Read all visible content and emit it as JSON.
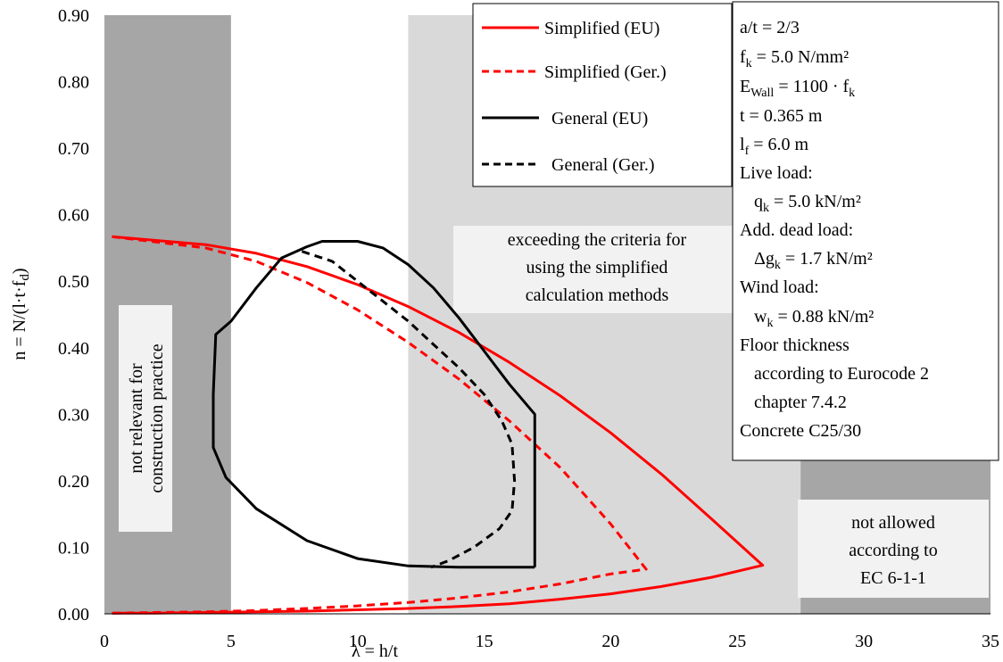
{
  "chart_data": {
    "type": "line",
    "xlabel": "λ = h/t",
    "ylabel": "n = N/(l·t·f_d)",
    "xlim": [
      0,
      35
    ],
    "ylim": [
      0,
      0.9
    ],
    "x_ticks": [
      "0",
      "5",
      "10",
      "15",
      "20",
      "25",
      "30",
      "35"
    ],
    "y_ticks": [
      "0.00",
      "0.10",
      "0.20",
      "0.30",
      "0.40",
      "0.50",
      "0.60",
      "0.70",
      "0.80",
      "0.90"
    ],
    "grid": false,
    "legend_position": "top-right",
    "regions": [
      {
        "label": "not relevant for construction practice",
        "x_range": [
          0,
          5
        ],
        "y_range": [
          0,
          0.9
        ],
        "color": "#a6a6a6"
      },
      {
        "label": "exceeding the criteria for using the simplified calculation methods",
        "x_range": [
          12,
          35
        ],
        "y_range": [
          0,
          0.9
        ],
        "color": "#d9d9d9"
      },
      {
        "label": "not allowed according to EC 6-1-1",
        "x_range": [
          27.5,
          35
        ],
        "y_range": [
          0,
          0.9
        ],
        "color": "#a6a6a6"
      }
    ],
    "series": [
      {
        "name": "Simplified (EU)",
        "color": "#ff0000",
        "dash": "solid",
        "x": [
          0.3,
          4,
          6,
          8,
          10,
          12,
          14,
          16,
          18,
          20,
          22,
          24,
          26,
          24,
          22,
          20,
          18,
          16,
          14,
          12,
          10,
          8,
          6,
          4,
          2,
          0.3
        ],
        "y": [
          0.567,
          0.555,
          0.542,
          0.522,
          0.495,
          0.462,
          0.423,
          0.378,
          0.328,
          0.272,
          0.21,
          0.142,
          0.073,
          0.055,
          0.041,
          0.03,
          0.022,
          0.015,
          0.011,
          0.008,
          0.006,
          0.004,
          0.003,
          0.002,
          0.001,
          0.001
        ]
      },
      {
        "name": "Simplified (Ger.)",
        "color": "#ff0000",
        "dash": "dashed",
        "x": [
          0.3,
          4,
          6,
          8,
          10,
          12,
          14,
          16,
          18,
          20,
          21.4,
          20,
          18,
          16,
          14,
          12,
          10,
          8,
          6,
          4,
          2,
          0.3
        ],
        "y": [
          0.567,
          0.55,
          0.53,
          0.498,
          0.457,
          0.408,
          0.353,
          0.29,
          0.22,
          0.135,
          0.067,
          0.06,
          0.045,
          0.033,
          0.024,
          0.017,
          0.012,
          0.008,
          0.005,
          0.003,
          0.002,
          0.001
        ]
      },
      {
        "name": "General (EU)",
        "color": "#000000",
        "dash": "solid",
        "x": [
          17,
          17,
          16,
          15,
          14,
          13,
          12,
          11,
          10,
          9.2,
          8.6,
          8,
          7,
          6,
          5,
          4.4,
          4.3,
          4.3,
          4.8,
          6,
          8,
          10,
          12,
          14,
          17
        ],
        "y": [
          0.07,
          0.3,
          0.345,
          0.395,
          0.445,
          0.49,
          0.525,
          0.55,
          0.56,
          0.56,
          0.56,
          0.552,
          0.535,
          0.49,
          0.44,
          0.42,
          0.33,
          0.25,
          0.205,
          0.158,
          0.11,
          0.083,
          0.072,
          0.07,
          0.07
        ]
      },
      {
        "name": "General (Ger.)",
        "color": "#000000",
        "dash": "dashed",
        "x": [
          7.8,
          9,
          10,
          11,
          12,
          13,
          14,
          15,
          15.7,
          16.1,
          16.2,
          16.1,
          15.6,
          14.6,
          13.6,
          12.9
        ],
        "y": [
          0.545,
          0.53,
          0.5,
          0.47,
          0.44,
          0.405,
          0.37,
          0.33,
          0.29,
          0.255,
          0.2,
          0.155,
          0.128,
          0.1,
          0.08,
          0.07
        ]
      }
    ],
    "annotations": [
      {
        "text": "not relevant for construction practice",
        "orientation": "vertical"
      },
      {
        "text": "exceeding the criteria for using the simplified calculation methods"
      },
      {
        "text": "not allowed according to EC 6-1-1"
      }
    ]
  },
  "chart_texts": {
    "xlabel_main": "λ = h/t",
    "ylabel_main": "n = N/(l·t·f",
    "ylabel_sub": "d",
    "ylabel_close": ")",
    "region_left": [
      "not relevant for",
      "construction practice"
    ],
    "region_mid": [
      "exceeding the criteria for",
      "using the simplified",
      "calculation methods"
    ],
    "region_right": [
      "not allowed",
      "according to",
      "EC 6-1-1"
    ]
  },
  "legend": {
    "items": [
      {
        "label": "Simplified (EU)"
      },
      {
        "label": "Simplified (Ger.)"
      },
      {
        "label": "General (EU)"
      },
      {
        "label": "General (Ger.)"
      }
    ]
  },
  "info_box": {
    "at": "a/t = 2/3",
    "fk_main": "f",
    "fk_sub": "k",
    "fk_val": " = 5.0 N/mm²",
    "ewall_main": "E",
    "ewall_sub": "Wall",
    "ewall_val": " = 1100 · f",
    "ewall_sub2": "k",
    "t": "t = 0.365 m",
    "lf_main": "l",
    "lf_sub": "f",
    "lf_val": " = 6.0 m",
    "live": "Live load:",
    "qk_main": "q",
    "qk_sub": "k",
    "qk_val": " = 5.0 kN/m²",
    "add": "Add. dead load:",
    "dgk_main": "Δg",
    "dgk_sub": "k",
    "dgk_val": " = 1.7 kN/m²",
    "wind": "Wind load:",
    "wk_main": "w",
    "wk_sub": "k",
    "wk_val": " = 0.88 kN/m²",
    "floor1": "Floor thickness",
    "floor2": "according to Eurocode 2",
    "floor3": "chapter 7.4.2",
    "concrete": "Concrete C25/30"
  }
}
